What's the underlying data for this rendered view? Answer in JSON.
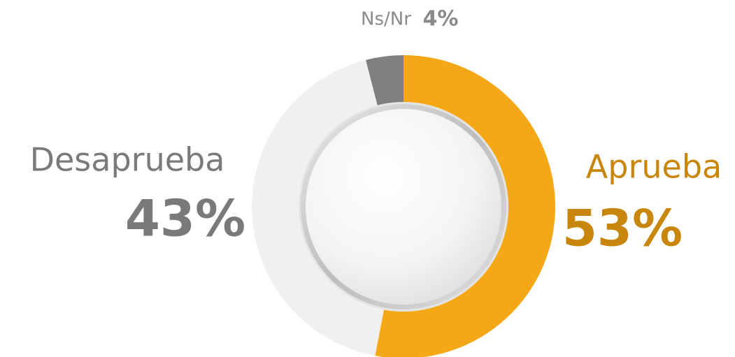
{
  "chart_data": {
    "type": "pie",
    "categories": [
      "Aprueba",
      "Desaprueba",
      "Ns/Nr"
    ],
    "values": [
      53,
      43,
      4
    ],
    "value_labels": [
      "53%",
      "43%",
      "4%"
    ],
    "colors": [
      "#f5a816",
      "#f0f0f0",
      "#808080"
    ],
    "label_colors": [
      "#c8870c",
      "#7a7a7a",
      "#8a8a8a"
    ]
  }
}
